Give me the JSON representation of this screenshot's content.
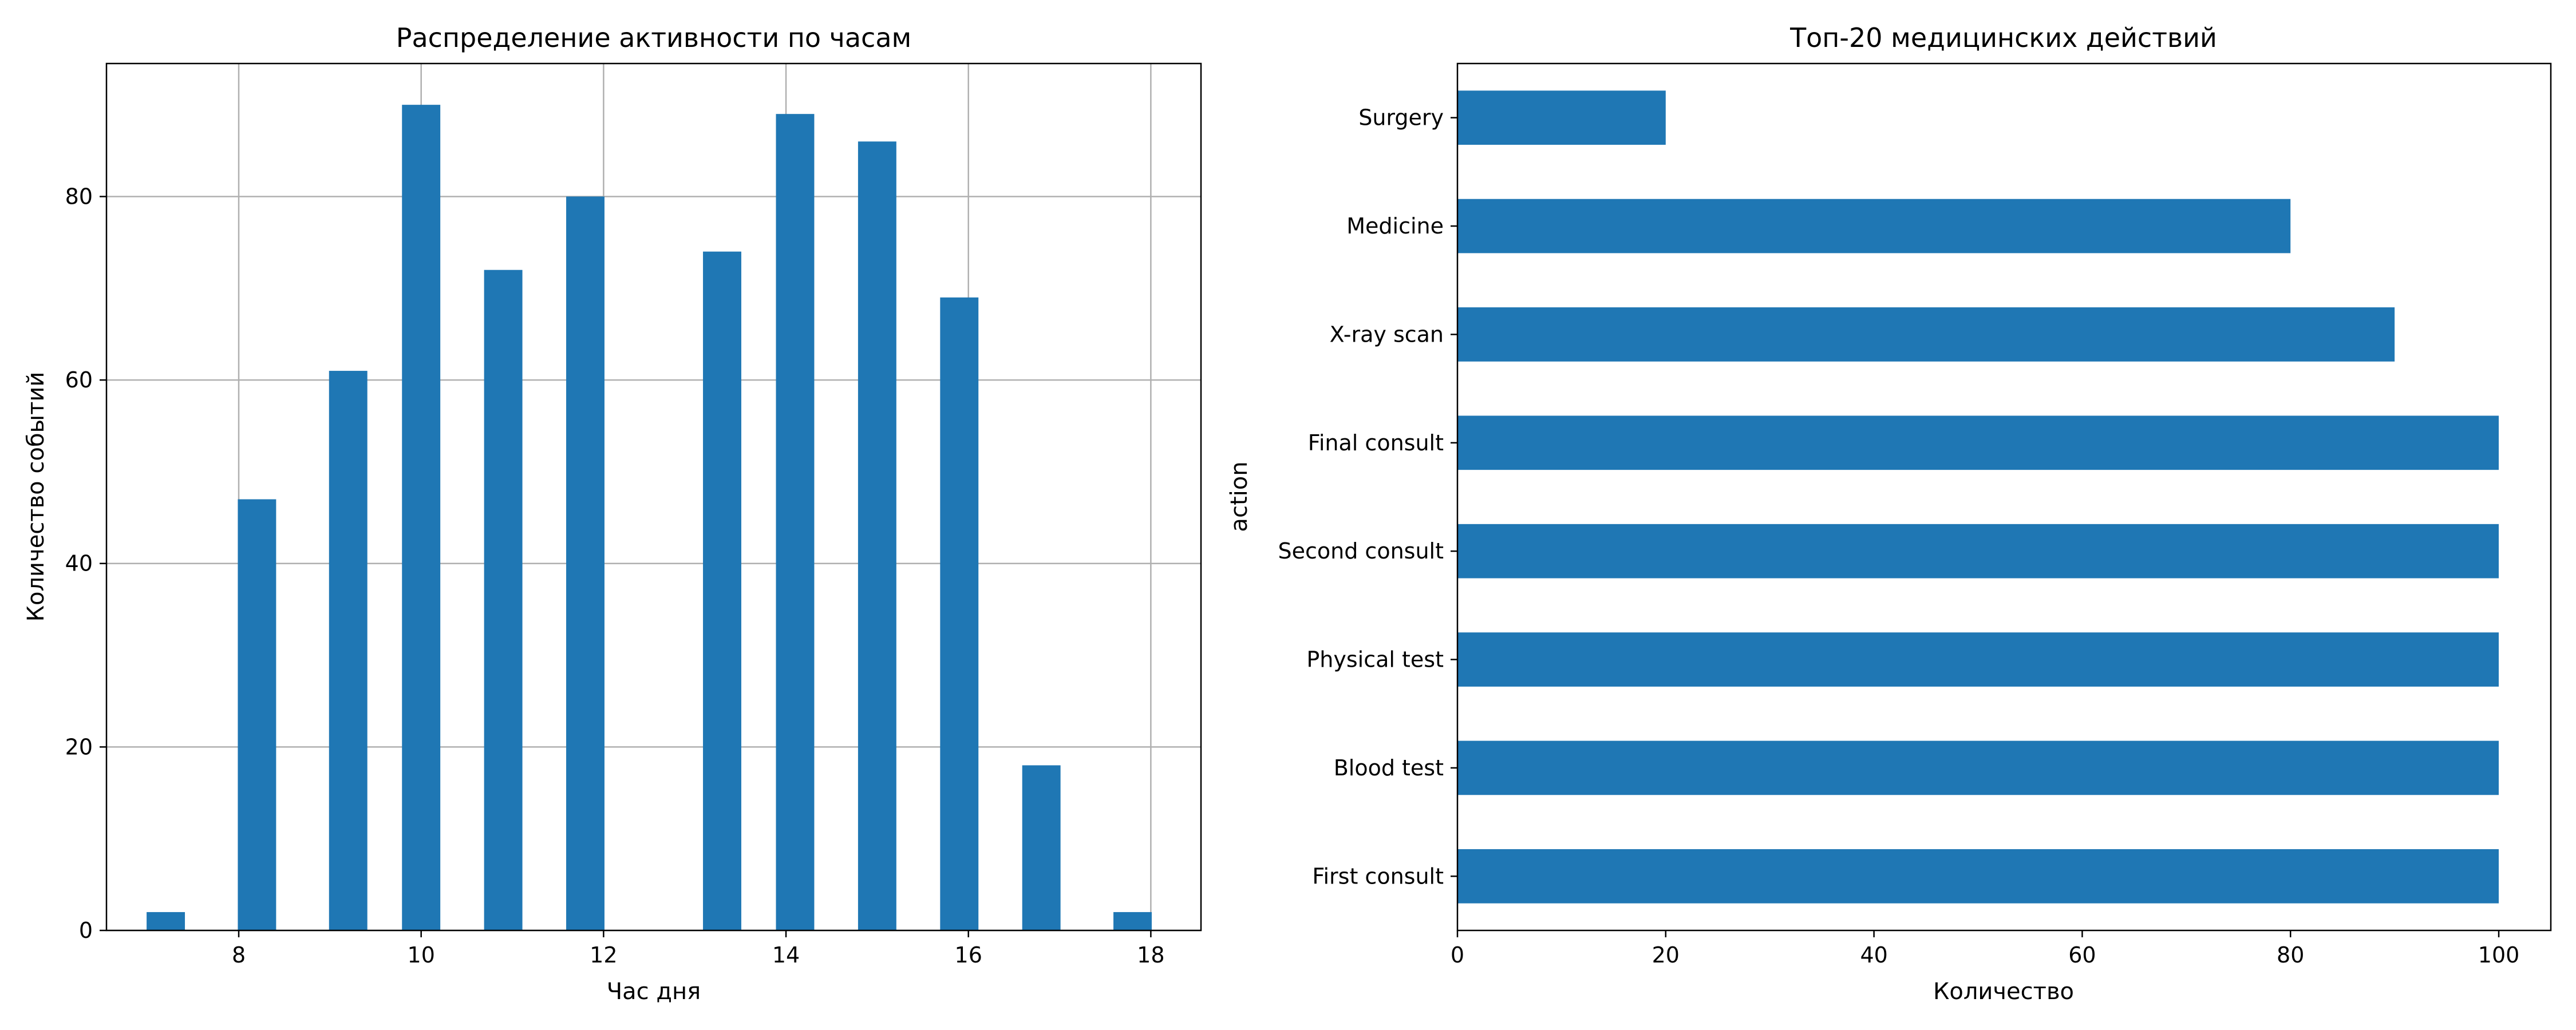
{
  "colors": {
    "bar": "#1f77b4",
    "grid": "#b0b0b0",
    "axis": "#000000",
    "background": "#ffffff"
  },
  "chart_data": [
    {
      "type": "bar",
      "orientation": "vertical",
      "title": "Распределение активности по часам",
      "xlabel": "Час дня",
      "ylabel": "Количество событий",
      "x": [
        7.2,
        8.2,
        9.2,
        10.0,
        10.9,
        11.8,
        13.3,
        14.1,
        15.0,
        15.9,
        16.8,
        17.8
      ],
      "values": [
        2,
        47,
        61,
        90,
        72,
        80,
        74,
        89,
        86,
        69,
        18,
        2
      ],
      "xlim": [
        6.55,
        18.55
      ],
      "ylim": [
        0,
        94.5
      ],
      "xticks": [
        8,
        10,
        12,
        14,
        16,
        18
      ],
      "yticks": [
        0,
        20,
        40,
        60,
        80
      ],
      "grid": true,
      "legend": "none"
    },
    {
      "type": "bar",
      "orientation": "horizontal",
      "title": "Топ-20 медицинских действий",
      "xlabel": "Количество",
      "ylabel": "action",
      "categories": [
        "First consult",
        "Blood test",
        "Physical test",
        "Second consult",
        "Final consult",
        "X-ray scan",
        "Medicine",
        "Surgery"
      ],
      "values": [
        100,
        100,
        100,
        100,
        100,
        90,
        80,
        20
      ],
      "xlim": [
        0,
        105
      ],
      "xticks": [
        0,
        20,
        40,
        60,
        80,
        100
      ],
      "grid": false,
      "legend": "none"
    }
  ]
}
